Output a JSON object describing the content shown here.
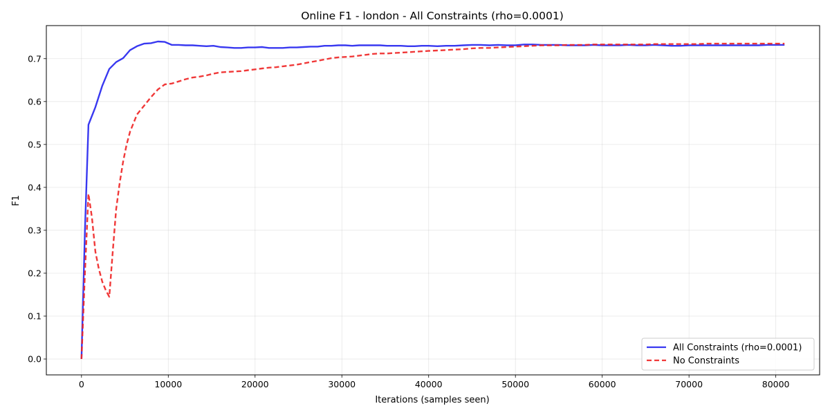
{
  "chart_data": {
    "type": "line",
    "title": "Online F1 - london - All Constraints (rho=0.0001)",
    "xlabel": "Iterations (samples seen)",
    "ylabel": "F1",
    "xlim": [
      -4050,
      85050
    ],
    "ylim": [
      -0.037,
      0.777
    ],
    "xticks": [
      0,
      10000,
      20000,
      30000,
      40000,
      50000,
      60000,
      70000,
      80000
    ],
    "xtick_labels": [
      "0",
      "10000",
      "20000",
      "30000",
      "40000",
      "50000",
      "60000",
      "70000",
      "80000"
    ],
    "yticks": [
      0.0,
      0.1,
      0.2,
      0.3,
      0.4,
      0.5,
      0.6,
      0.7
    ],
    "ytick_labels": [
      "0.0",
      "0.1",
      "0.2",
      "0.3",
      "0.4",
      "0.5",
      "0.6",
      "0.7"
    ],
    "grid": true,
    "legend_position": "bottom-right",
    "series": [
      {
        "name": "All Constraints (rho=0.0001)",
        "color": "#2222ee",
        "dash": "solid",
        "x": [
          0,
          400,
          800,
          1600,
          2400,
          3200,
          4000,
          4800,
          5600,
          6400,
          7200,
          8000,
          8800,
          9600,
          10400,
          11200,
          12000,
          12800,
          13600,
          14400,
          15200,
          16000,
          16800,
          17600,
          18400,
          19200,
          20000,
          20800,
          21600,
          22400,
          23200,
          24000,
          24800,
          25600,
          26400,
          27200,
          28000,
          28800,
          29600,
          30400,
          31200,
          32000,
          32800,
          33600,
          34400,
          35200,
          36000,
          36800,
          37600,
          38400,
          39200,
          40000,
          41000,
          42000,
          43000,
          44000,
          45000,
          46000,
          47000,
          48000,
          49000,
          50000,
          51000,
          52000,
          53000,
          54000,
          55000,
          56000,
          57000,
          58000,
          59000,
          60000,
          61000,
          62000,
          63000,
          64000,
          65000,
          66000,
          67000,
          68000,
          69000,
          70000,
          71000,
          72000,
          73000,
          74000,
          75000,
          76000,
          77000,
          78000,
          79000,
          80000,
          81000
        ],
        "y": [
          0.0,
          0.3,
          0.546,
          0.587,
          0.637,
          0.676,
          0.692,
          0.701,
          0.72,
          0.729,
          0.735,
          0.736,
          0.74,
          0.739,
          0.732,
          0.732,
          0.731,
          0.731,
          0.73,
          0.729,
          0.73,
          0.727,
          0.726,
          0.725,
          0.725,
          0.726,
          0.726,
          0.727,
          0.725,
          0.725,
          0.725,
          0.726,
          0.726,
          0.727,
          0.728,
          0.728,
          0.73,
          0.73,
          0.731,
          0.731,
          0.73,
          0.731,
          0.731,
          0.731,
          0.731,
          0.73,
          0.73,
          0.73,
          0.729,
          0.729,
          0.73,
          0.73,
          0.729,
          0.73,
          0.73,
          0.731,
          0.732,
          0.732,
          0.731,
          0.732,
          0.731,
          0.731,
          0.733,
          0.733,
          0.732,
          0.732,
          0.732,
          0.731,
          0.731,
          0.731,
          0.732,
          0.731,
          0.731,
          0.731,
          0.732,
          0.731,
          0.731,
          0.732,
          0.731,
          0.73,
          0.73,
          0.731,
          0.731,
          0.731,
          0.731,
          0.731,
          0.731,
          0.731,
          0.731,
          0.731,
          0.732,
          0.732,
          0.732
        ]
      },
      {
        "name": "No Constraints",
        "color": "#ee2222",
        "dash": "dashed",
        "x": [
          0,
          400,
          800,
          1200,
          1600,
          2000,
          2400,
          2800,
          3200,
          3600,
          4000,
          4400,
          4800,
          5200,
          5600,
          6000,
          6400,
          7200,
          8000,
          8800,
          9600,
          10400,
          11200,
          12000,
          12800,
          13600,
          14400,
          15200,
          16000,
          16800,
          17600,
          18400,
          19200,
          20000,
          20800,
          21600,
          22400,
          23200,
          24000,
          24800,
          25600,
          26400,
          27200,
          28000,
          28800,
          29600,
          30400,
          31200,
          32000,
          32800,
          33600,
          34400,
          35200,
          36000,
          36800,
          37600,
          38400,
          39200,
          40000,
          41000,
          42000,
          43000,
          44000,
          45000,
          46000,
          47000,
          48000,
          49000,
          50000,
          51000,
          52000,
          53000,
          54000,
          55000,
          56000,
          57000,
          58000,
          59000,
          60000,
          61000,
          62000,
          63000,
          64000,
          65000,
          66000,
          67000,
          68000,
          69000,
          70000,
          71000,
          72000,
          73000,
          74000,
          75000,
          76000,
          77000,
          78000,
          79000,
          80000,
          81000
        ],
        "y": [
          0.0,
          0.2,
          0.385,
          0.33,
          0.25,
          0.21,
          0.18,
          0.16,
          0.145,
          0.25,
          0.35,
          0.41,
          0.46,
          0.5,
          0.53,
          0.55,
          0.57,
          0.59,
          0.61,
          0.628,
          0.64,
          0.642,
          0.647,
          0.652,
          0.656,
          0.658,
          0.661,
          0.665,
          0.668,
          0.669,
          0.67,
          0.671,
          0.673,
          0.675,
          0.677,
          0.679,
          0.68,
          0.682,
          0.684,
          0.686,
          0.689,
          0.692,
          0.695,
          0.698,
          0.701,
          0.703,
          0.704,
          0.705,
          0.707,
          0.709,
          0.711,
          0.712,
          0.712,
          0.713,
          0.714,
          0.715,
          0.716,
          0.717,
          0.718,
          0.719,
          0.72,
          0.721,
          0.722,
          0.724,
          0.725,
          0.725,
          0.726,
          0.727,
          0.728,
          0.729,
          0.73,
          0.731,
          0.731,
          0.731,
          0.732,
          0.732,
          0.732,
          0.733,
          0.733,
          0.733,
          0.733,
          0.733,
          0.733,
          0.733,
          0.734,
          0.734,
          0.734,
          0.734,
          0.734,
          0.734,
          0.735,
          0.735,
          0.735,
          0.735,
          0.735,
          0.735,
          0.735,
          0.735,
          0.735,
          0.735
        ]
      }
    ]
  }
}
